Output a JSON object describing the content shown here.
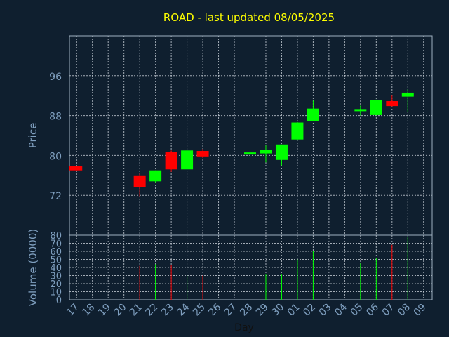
{
  "chart_data": {
    "type": "candlestick",
    "title": "ROAD - last updated 08/05/2025",
    "xlabel": "Day",
    "ylabel": "Price",
    "volume_label": "Volume (0000)",
    "grid": true,
    "price_ylim": [
      64,
      104
    ],
    "price_ticks": [
      72,
      80,
      88,
      96
    ],
    "volume_ylim": [
      0,
      80
    ],
    "volume_ticks": [
      0,
      10,
      20,
      30,
      40,
      50,
      60,
      70,
      80
    ],
    "x_ticks": [
      "17",
      "18",
      "19",
      "20",
      "21",
      "22",
      "23",
      "24",
      "25",
      "26",
      "27",
      "28",
      "29",
      "30",
      "01",
      "02",
      "03",
      "04",
      "05",
      "06",
      "07",
      "08",
      "09"
    ],
    "colors": {
      "up": "#00ff00",
      "down": "#ff0000",
      "background": "#0f1f2f",
      "title": "#ffff00",
      "axis": "#7f9fbf"
    },
    "candles": [
      {
        "day": "17",
        "open": 77.8,
        "high": 77.8,
        "low": 77.0,
        "close": 77.0,
        "volume": 0
      },
      {
        "day": "21",
        "open": 76.0,
        "high": 76.4,
        "low": 71.8,
        "close": 73.6,
        "volume": 42
      },
      {
        "day": "22",
        "open": 74.8,
        "high": 77.0,
        "low": 74.6,
        "close": 77.0,
        "volume": 44
      },
      {
        "day": "23",
        "open": 80.7,
        "high": 81.0,
        "low": 76.7,
        "close": 77.2,
        "volume": 43
      },
      {
        "day": "24",
        "open": 77.2,
        "high": 81.2,
        "low": 77.2,
        "close": 81.0,
        "volume": 30
      },
      {
        "day": "25",
        "open": 80.9,
        "high": 81.3,
        "low": 79.5,
        "close": 79.8,
        "volume": 30
      },
      {
        "day": "28",
        "open": 80.2,
        "high": 81.3,
        "low": 79.5,
        "close": 80.6,
        "volume": 26
      },
      {
        "day": "29",
        "open": 80.4,
        "high": 82.0,
        "low": 78.6,
        "close": 81.1,
        "volume": 32
      },
      {
        "day": "30",
        "open": 79.1,
        "high": 82.2,
        "low": 78.0,
        "close": 82.2,
        "volume": 32
      },
      {
        "day": "01",
        "open": 83.2,
        "high": 86.7,
        "low": 83.0,
        "close": 86.6,
        "volume": 50
      },
      {
        "day": "02",
        "open": 86.9,
        "high": 91.0,
        "low": 86.9,
        "close": 89.4,
        "volume": 60
      },
      {
        "day": "05",
        "open": 88.9,
        "high": 90.0,
        "low": 88.0,
        "close": 89.3,
        "volume": 45
      },
      {
        "day": "06",
        "open": 88.1,
        "high": 91.2,
        "low": 88.0,
        "close": 91.1,
        "volume": 52
      },
      {
        "day": "07",
        "open": 90.9,
        "high": 92.0,
        "low": 89.8,
        "close": 89.9,
        "volume": 68
      },
      {
        "day": "08",
        "open": 91.8,
        "high": 93.3,
        "low": 88.7,
        "close": 92.6,
        "volume": 78
      }
    ]
  }
}
